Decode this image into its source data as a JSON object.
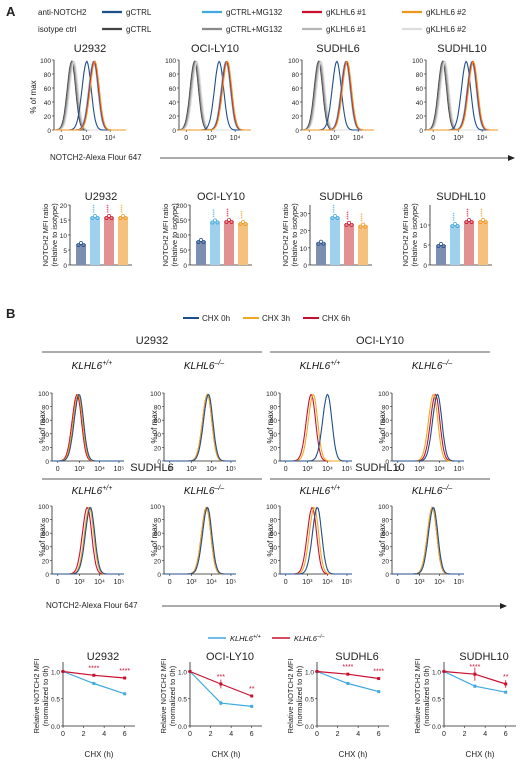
{
  "panels": {
    "A": {
      "label": "A",
      "legend_rows": [
        {
          "label": "anti-NOTCH2",
          "entries": [
            {
              "name": "gCTRL",
              "color": "#1f4e8c"
            },
            {
              "name": "gCTRL+MG132",
              "color": "#3fa9e0"
            },
            {
              "name": "gKLHL6 #1",
              "color": "#c8102e"
            },
            {
              "name": "gKLHL6 #2",
              "color": "#f0961e"
            }
          ]
        },
        {
          "label": "isotype ctrl",
          "entries": [
            {
              "name": "gCTRL",
              "color": "#444444"
            },
            {
              "name": "gCTRL+MG132",
              "color": "#8a8a8a"
            },
            {
              "name": "gKLHL6 #1",
              "color": "#b5b5b5"
            },
            {
              "name": "gKLHL6 #2",
              "color": "#dddddd"
            }
          ]
        }
      ],
      "y_axis_label": "% of max",
      "x_axis_label": "NOTCH2-Alexa Flour 647"
    },
    "B": {
      "label": "B",
      "legend": [
        {
          "name": "CHX 0h",
          "color": "#1f4e8c"
        },
        {
          "name": "CHX 3h",
          "color": "#f0a820"
        },
        {
          "name": "CHX 6h",
          "color": "#c8102e"
        }
      ],
      "y_axis_label": "% of max",
      "x_axis_label": "NOTCH2-Alexa Flour 647",
      "line_legend": [
        {
          "name": "KLHL6",
          "sup": "+/+",
          "color": "#3fa9e0"
        },
        {
          "name": "KLHL6",
          "sup": "–/–",
          "color": "#c8102e"
        }
      ],
      "line_ylabel": [
        "Relative NOTCH2 MFI",
        "(normalized to 0h)"
      ],
      "line_xlabel": "CHX (h)"
    }
  },
  "chart_data": [
    {
      "type": "line",
      "title": "Flow cytometry histograms (panel A)",
      "hist_x_ticks": [
        "0",
        "10³",
        "10⁴"
      ],
      "hist_y_ticks": [
        0,
        20,
        40,
        60,
        80,
        100
      ],
      "ylim": [
        0,
        100
      ],
      "cell_lines": [
        {
          "name": "U2932",
          "isotype_peak_log": 2.55,
          "ctrl_peak_log": 3.2,
          "treated_peak_log": 3.55
        },
        {
          "name": "OCI-LY10",
          "isotype_peak_log": 2.45,
          "ctrl_peak_log": 3.55,
          "treated_peak_log": 3.9
        },
        {
          "name": "SUDHL6",
          "isotype_peak_log": 2.5,
          "ctrl_peak_log": 3.3,
          "treated_peak_log": 3.75
        },
        {
          "name": "SUDHL10",
          "isotype_peak_log": 2.5,
          "ctrl_peak_log": 3.55,
          "treated_peak_log": 3.85
        }
      ]
    },
    {
      "type": "bar",
      "title": "NOTCH2 MFI ratio (panel A)",
      "ylabel": "NOTCH2 MFI ratio (relative to isotype)",
      "categories": [
        "gCTRL",
        "gCTRL+MG132",
        "gKLHL6 #1",
        "gKLHL6 #2"
      ],
      "colors": [
        "#7d8fb0",
        "#9fd0ee",
        "#e39093",
        "#f5c27e"
      ],
      "dot_colors": [
        "#1f4e8c",
        "#3fa9e0",
        "#c8102e",
        "#f0961e"
      ],
      "charts": [
        {
          "name": "U2932",
          "values": [
            7,
            16,
            16,
            16
          ],
          "ylim": [
            0,
            20
          ],
          "yticks": [
            0,
            5,
            10,
            15,
            20
          ],
          "stars": [
            "",
            "****",
            "****",
            "****"
          ]
        },
        {
          "name": "OCI-LY10",
          "values": [
            80,
            145,
            147,
            140
          ],
          "ylim": [
            0,
            200
          ],
          "yticks": [
            0,
            50,
            100,
            150,
            200
          ],
          "stars": [
            "",
            "****",
            "****",
            "****"
          ]
        },
        {
          "name": "SUDHL6",
          "values": [
            13,
            28,
            24,
            23
          ],
          "ylim": [
            0,
            35
          ],
          "yticks": [
            0,
            10,
            20,
            30
          ],
          "stars": [
            "",
            "****",
            "****",
            "****"
          ]
        },
        {
          "name": "SUDHL10",
          "values": [
            5,
            10,
            11,
            11
          ],
          "ylim": [
            0,
            15
          ],
          "yticks": [
            0,
            5,
            10
          ],
          "stars": [
            "",
            "****",
            "****",
            "****"
          ]
        }
      ]
    },
    {
      "type": "line",
      "title": "CHX chase histograms (panel B)",
      "hist_x_ticks": [
        "0",
        "10³",
        "10⁴",
        "10⁵"
      ],
      "hist_y_ticks": [
        0,
        20,
        40,
        60,
        80,
        100
      ],
      "groups": [
        {
          "cell_line": "U2932",
          "genotypes": [
            {
              "label": "KLHL6",
              "sup": "+/+",
              "peaks": {
                "0h": 3.05,
                "3h": 3.0,
                "6h": 2.95
              }
            },
            {
              "label": "KLHL6",
              "sup": "–/–",
              "peaks": {
                "0h": 3.9,
                "3h": 3.85,
                "6h": 3.85
              }
            }
          ]
        },
        {
          "cell_line": "OCI-LY10",
          "genotypes": [
            {
              "label": "KLHL6",
              "sup": "+/+",
              "peaks": {
                "0h": 4.05,
                "3h": 3.35,
                "6h": 3.25
              }
            },
            {
              "label": "KLHL6",
              "sup": "–/–",
              "peaks": {
                "0h": 3.95,
                "3h": 3.75,
                "6h": 3.85
              }
            }
          ]
        },
        {
          "cell_line": "SUDHL6",
          "genotypes": [
            {
              "label": "KLHL6",
              "sup": "+/+",
              "peaks": {
                "0h": 3.6,
                "3h": 3.55,
                "6h": 3.45
              }
            },
            {
              "label": "KLHL6",
              "sup": "–/–",
              "peaks": {
                "0h": 3.85,
                "3h": 3.8,
                "6h": 3.8
              }
            }
          ]
        },
        {
          "cell_line": "SUDHL10",
          "genotypes": [
            {
              "label": "KLHL6",
              "sup": "+/+",
              "peaks": {
                "0h": 3.55,
                "3h": 3.4,
                "6h": 3.3
              }
            },
            {
              "label": "KLHL6",
              "sup": "–/–",
              "peaks": {
                "0h": 3.75,
                "3h": 3.7,
                "6h": 3.7
              }
            }
          ]
        }
      ]
    },
    {
      "type": "line",
      "title": "Relative NOTCH2 MFI over CHX time (panel B)",
      "x": [
        0,
        3,
        6
      ],
      "xticks": [
        0,
        2,
        4,
        6
      ],
      "xlim": [
        0,
        7
      ],
      "yticks": [
        0.0,
        0.5,
        1.0
      ],
      "ytick_labels": [
        "0.0",
        "0.5",
        "1.0"
      ],
      "ylim": [
        0,
        1.1
      ],
      "charts": [
        {
          "name": "U2932",
          "series": [
            {
              "name": "KLHL6 +/+",
              "values": [
                1.0,
                0.78,
                0.59
              ],
              "err": [
                0,
                0.01,
                0.01
              ]
            },
            {
              "name": "KLHL6 –/–",
              "values": [
                1.0,
                0.93,
                0.88
              ],
              "err": [
                0,
                0.01,
                0.01
              ]
            }
          ],
          "stars": [
            "****",
            "****"
          ]
        },
        {
          "name": "OCI-LY10",
          "series": [
            {
              "name": "KLHL6 +/+",
              "values": [
                1.0,
                0.42,
                0.36
              ],
              "err": [
                0,
                0.04,
                0.02
              ]
            },
            {
              "name": "KLHL6 –/–",
              "values": [
                1.0,
                0.77,
                0.55
              ],
              "err": [
                0,
                0.08,
                0.02
              ]
            }
          ],
          "stars": [
            "***",
            "**"
          ]
        },
        {
          "name": "SUDHL6",
          "series": [
            {
              "name": "KLHL6 +/+",
              "values": [
                1.0,
                0.78,
                0.63
              ],
              "err": [
                0,
                0.02,
                0.01
              ]
            },
            {
              "name": "KLHL6 –/–",
              "values": [
                1.0,
                0.95,
                0.87
              ],
              "err": [
                0,
                0.02,
                0.01
              ]
            }
          ],
          "stars": [
            "****",
            "****"
          ]
        },
        {
          "name": "SUDHL10",
          "series": [
            {
              "name": "KLHL6 +/+",
              "values": [
                1.0,
                0.73,
                0.62
              ],
              "err": [
                0,
                0.03,
                0.02
              ]
            },
            {
              "name": "KLHL6 –/–",
              "values": [
                1.0,
                0.95,
                0.77
              ],
              "err": [
                0,
                0.12,
                0.07
              ]
            }
          ],
          "stars": [
            "****",
            "**"
          ]
        }
      ]
    }
  ]
}
